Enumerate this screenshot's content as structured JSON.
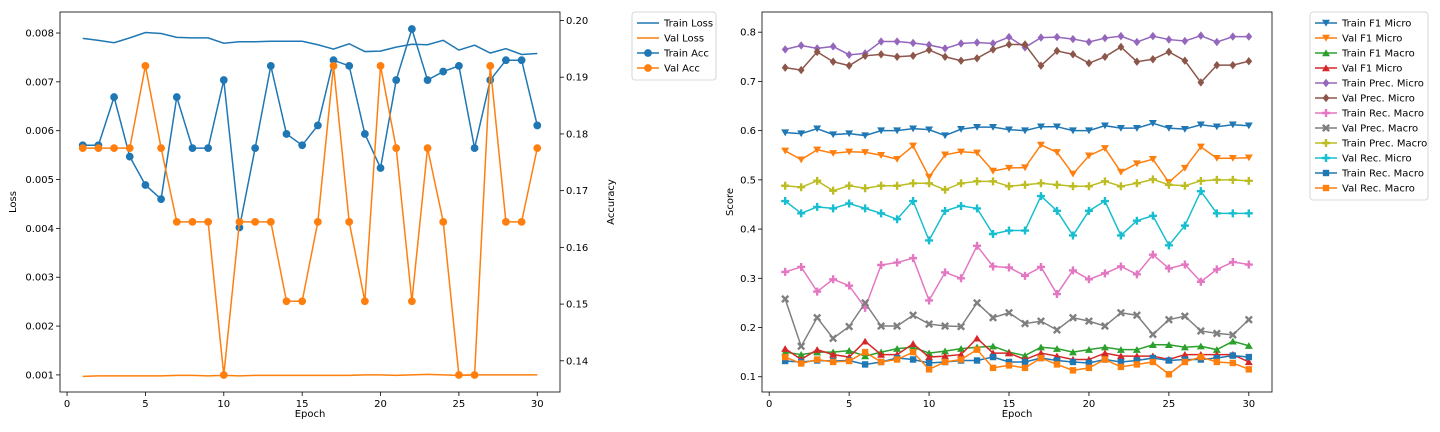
{
  "chart_data": [
    {
      "type": "line",
      "xlabel": "Epoch",
      "ylabel": "Loss",
      "ylabel_right": "Accuracy",
      "x": [
        1,
        2,
        3,
        4,
        5,
        6,
        7,
        8,
        9,
        10,
        11,
        12,
        13,
        14,
        15,
        16,
        17,
        18,
        19,
        20,
        21,
        22,
        23,
        24,
        25,
        26,
        27,
        28,
        29,
        30
      ],
      "xlim": [
        -0.45,
        31.45
      ],
      "ylim": [
        0.00065,
        0.00843
      ],
      "ylim_right": [
        0.1345,
        0.2015
      ],
      "xticks": [
        0,
        5,
        10,
        15,
        20,
        25,
        30
      ],
      "xtick_labels": [
        "0",
        "5",
        "10",
        "15",
        "20",
        "25",
        "30"
      ],
      "yticks": [
        0.001,
        0.002,
        0.003,
        0.004,
        0.005,
        0.006,
        0.007,
        0.008
      ],
      "ytick_labels": [
        "0.001",
        "0.002",
        "0.003",
        "0.004",
        "0.005",
        "0.006",
        "0.007",
        "0.008"
      ],
      "yticks_right": [
        0.14,
        0.15,
        0.16,
        0.17,
        0.18,
        0.19,
        0.2
      ],
      "ytick_labels_right": [
        "0.14",
        "0.15",
        "0.16",
        "0.17",
        "0.18",
        "0.19",
        "0.20"
      ],
      "grid": false,
      "legend_position": "outside-right-top",
      "series": [
        {
          "name": "Train Loss",
          "axis": "left",
          "color": "#1f77b4",
          "marker": "none",
          "values": [
            0.00789,
            0.00785,
            0.0078,
            0.0079,
            0.00801,
            0.00799,
            0.00791,
            0.0079,
            0.0079,
            0.00779,
            0.00782,
            0.00782,
            0.00783,
            0.00783,
            0.00783,
            0.00776,
            0.00767,
            0.00778,
            0.00762,
            0.00763,
            0.00771,
            0.00777,
            0.00776,
            0.00785,
            0.00765,
            0.00775,
            0.00759,
            0.00768,
            0.00756,
            0.00758
          ]
        },
        {
          "name": "Val Loss",
          "axis": "left",
          "color": "#ff7f0e",
          "marker": "none",
          "values": [
            0.00097,
            0.00098,
            0.00098,
            0.00098,
            0.00098,
            0.00098,
            0.00099,
            0.00099,
            0.00098,
            0.00099,
            0.00098,
            0.00099,
            0.00099,
            0.00099,
            0.00099,
            0.00099,
            0.00099,
            0.00099,
            0.001,
            0.001,
            0.00099,
            0.001,
            0.00101,
            0.001,
            0.00099,
            0.001,
            0.001,
            0.001,
            0.001,
            0.001
          ]
        },
        {
          "name": "Train Acc",
          "axis": "right",
          "color": "#1f77b4",
          "marker": "circle",
          "values": [
            0.178,
            0.178,
            0.1865,
            0.176,
            0.171,
            0.1685,
            0.1865,
            0.1775,
            0.1775,
            0.1895,
            0.1635,
            0.1775,
            0.192,
            0.18,
            0.178,
            0.1815,
            0.193,
            0.192,
            0.18,
            0.174,
            0.1895,
            0.1985,
            0.1895,
            0.191,
            0.192,
            0.1775,
            0.1895,
            0.193,
            0.193,
            0.1815
          ]
        },
        {
          "name": "Val Acc",
          "axis": "right",
          "color": "#ff7f0e",
          "marker": "circle",
          "values": [
            0.1775,
            0.1775,
            0.1775,
            0.1775,
            0.192,
            0.1775,
            0.1645,
            0.1645,
            0.1645,
            0.1375,
            0.1645,
            0.1645,
            0.1645,
            0.1505,
            0.1505,
            0.1645,
            0.192,
            0.1645,
            0.1505,
            0.192,
            0.1775,
            0.1505,
            0.1775,
            0.1645,
            0.1375,
            0.1375,
            0.192,
            0.1645,
            0.1645,
            0.1775
          ]
        }
      ]
    },
    {
      "type": "line",
      "xlabel": "Epoch",
      "ylabel": "Score",
      "x": [
        1,
        2,
        3,
        4,
        5,
        6,
        7,
        8,
        9,
        10,
        11,
        12,
        13,
        14,
        15,
        16,
        17,
        18,
        19,
        20,
        21,
        22,
        23,
        24,
        25,
        26,
        27,
        28,
        29,
        30
      ],
      "xlim": [
        -0.45,
        31.45
      ],
      "ylim": [
        0.069,
        0.841
      ],
      "xticks": [
        0,
        5,
        10,
        15,
        20,
        25,
        30
      ],
      "xtick_labels": [
        "0",
        "5",
        "10",
        "15",
        "20",
        "25",
        "30"
      ],
      "yticks": [
        0.1,
        0.2,
        0.3,
        0.4,
        0.5,
        0.6,
        0.7,
        0.8
      ],
      "ytick_labels": [
        "0.1",
        "0.2",
        "0.3",
        "0.4",
        "0.5",
        "0.6",
        "0.7",
        "0.8"
      ],
      "grid": false,
      "legend_position": "outside-right-top",
      "series": [
        {
          "name": "Train F1 Micro",
          "color": "#1f77b4",
          "marker": "tri-down",
          "values": [
            0.596,
            0.594,
            0.604,
            0.592,
            0.594,
            0.59,
            0.6,
            0.6,
            0.604,
            0.602,
            0.59,
            0.603,
            0.607,
            0.607,
            0.602,
            0.6,
            0.608,
            0.608,
            0.6,
            0.6,
            0.61,
            0.605,
            0.605,
            0.615,
            0.605,
            0.603,
            0.612,
            0.608,
            0.612,
            0.61
          ]
        },
        {
          "name": "Val F1 Micro",
          "color": "#ff7f0e",
          "marker": "tri-down",
          "values": [
            0.559,
            0.541,
            0.561,
            0.554,
            0.557,
            0.556,
            0.55,
            0.542,
            0.569,
            0.506,
            0.551,
            0.557,
            0.555,
            0.518,
            0.524,
            0.525,
            0.571,
            0.556,
            0.512,
            0.549,
            0.564,
            0.516,
            0.533,
            0.542,
            0.495,
            0.524,
            0.567,
            0.544,
            0.544,
            0.545
          ]
        },
        {
          "name": "Train F1 Macro",
          "color": "#2ca02c",
          "marker": "tri-up",
          "values": [
            0.15,
            0.145,
            0.15,
            0.15,
            0.153,
            0.142,
            0.15,
            0.157,
            0.16,
            0.148,
            0.152,
            0.157,
            0.16,
            0.162,
            0.15,
            0.143,
            0.16,
            0.157,
            0.15,
            0.155,
            0.16,
            0.155,
            0.155,
            0.165,
            0.165,
            0.16,
            0.162,
            0.155,
            0.172,
            0.163
          ]
        },
        {
          "name": "Val F1 Micro",
          "color": "#d62728",
          "marker": "tri-up",
          "values": [
            0.157,
            0.135,
            0.155,
            0.145,
            0.14,
            0.172,
            0.145,
            0.145,
            0.167,
            0.14,
            0.142,
            0.145,
            0.178,
            0.148,
            0.148,
            0.135,
            0.148,
            0.142,
            0.135,
            0.135,
            0.148,
            0.142,
            0.142,
            0.142,
            0.135,
            0.145,
            0.145,
            0.145,
            0.145,
            0.13
          ]
        },
        {
          "name": "Train Prec. Micro",
          "color": "#9467bd",
          "marker": "diamond",
          "values": [
            0.765,
            0.773,
            0.767,
            0.771,
            0.754,
            0.757,
            0.781,
            0.781,
            0.778,
            0.774,
            0.767,
            0.777,
            0.779,
            0.777,
            0.79,
            0.769,
            0.789,
            0.79,
            0.786,
            0.78,
            0.788,
            0.792,
            0.78,
            0.792,
            0.785,
            0.782,
            0.793,
            0.78,
            0.791,
            0.791
          ]
        },
        {
          "name": "Val Prec. Micro",
          "color": "#8c564b",
          "marker": "diamond",
          "values": [
            0.728,
            0.723,
            0.76,
            0.74,
            0.732,
            0.752,
            0.755,
            0.75,
            0.752,
            0.764,
            0.75,
            0.742,
            0.747,
            0.765,
            0.775,
            0.775,
            0.732,
            0.762,
            0.755,
            0.737,
            0.75,
            0.77,
            0.74,
            0.745,
            0.76,
            0.742,
            0.698,
            0.733,
            0.733,
            0.741
          ]
        },
        {
          "name": "Train Rec. Macro",
          "color": "#e377c2",
          "marker": "plus",
          "values": [
            0.313,
            0.323,
            0.273,
            0.298,
            0.285,
            0.24,
            0.327,
            0.332,
            0.341,
            0.255,
            0.312,
            0.3,
            0.366,
            0.324,
            0.322,
            0.305,
            0.323,
            0.268,
            0.316,
            0.298,
            0.31,
            0.324,
            0.308,
            0.348,
            0.32,
            0.328,
            0.293,
            0.318,
            0.333,
            0.328
          ]
        },
        {
          "name": "Val Prec. Macro",
          "color": "#7f7f7f",
          "marker": "x",
          "values": [
            0.258,
            0.162,
            0.22,
            0.178,
            0.202,
            0.25,
            0.203,
            0.203,
            0.225,
            0.207,
            0.203,
            0.202,
            0.25,
            0.22,
            0.23,
            0.208,
            0.213,
            0.195,
            0.22,
            0.213,
            0.203,
            0.23,
            0.225,
            0.186,
            0.216,
            0.223,
            0.193,
            0.188,
            0.185,
            0.216
          ]
        },
        {
          "name": "Train Prec. Macro",
          "color": "#bcbd22",
          "marker": "plus",
          "values": [
            0.488,
            0.485,
            0.498,
            0.478,
            0.488,
            0.483,
            0.488,
            0.488,
            0.493,
            0.493,
            0.48,
            0.493,
            0.497,
            0.497,
            0.487,
            0.49,
            0.493,
            0.49,
            0.487,
            0.487,
            0.497,
            0.487,
            0.493,
            0.501,
            0.49,
            0.488,
            0.498,
            0.5,
            0.5,
            0.498
          ]
        },
        {
          "name": "Val Rec. Micro",
          "color": "#17becf",
          "marker": "plus",
          "values": [
            0.457,
            0.432,
            0.445,
            0.442,
            0.452,
            0.442,
            0.432,
            0.42,
            0.457,
            0.377,
            0.437,
            0.447,
            0.442,
            0.39,
            0.397,
            0.397,
            0.467,
            0.437,
            0.387,
            0.437,
            0.457,
            0.387,
            0.417,
            0.427,
            0.367,
            0.407,
            0.477,
            0.432,
            0.432,
            0.432
          ]
        },
        {
          "name": "Train Rec. Macro",
          "color": "#1f77b4",
          "marker": "square",
          "values": [
            0.132,
            0.13,
            0.133,
            0.132,
            0.133,
            0.125,
            0.13,
            0.138,
            0.135,
            0.128,
            0.13,
            0.133,
            0.133,
            0.14,
            0.13,
            0.13,
            0.138,
            0.133,
            0.13,
            0.128,
            0.135,
            0.13,
            0.133,
            0.138,
            0.133,
            0.135,
            0.135,
            0.138,
            0.143,
            0.14
          ]
        },
        {
          "name": "Val Rec. Macro",
          "color": "#ff7f0e",
          "marker": "square",
          "values": [
            0.14,
            0.127,
            0.135,
            0.13,
            0.132,
            0.15,
            0.13,
            0.135,
            0.15,
            0.115,
            0.13,
            0.135,
            0.155,
            0.118,
            0.123,
            0.118,
            0.138,
            0.125,
            0.113,
            0.118,
            0.135,
            0.12,
            0.125,
            0.13,
            0.105,
            0.13,
            0.14,
            0.13,
            0.128,
            0.115
          ]
        }
      ]
    }
  ]
}
